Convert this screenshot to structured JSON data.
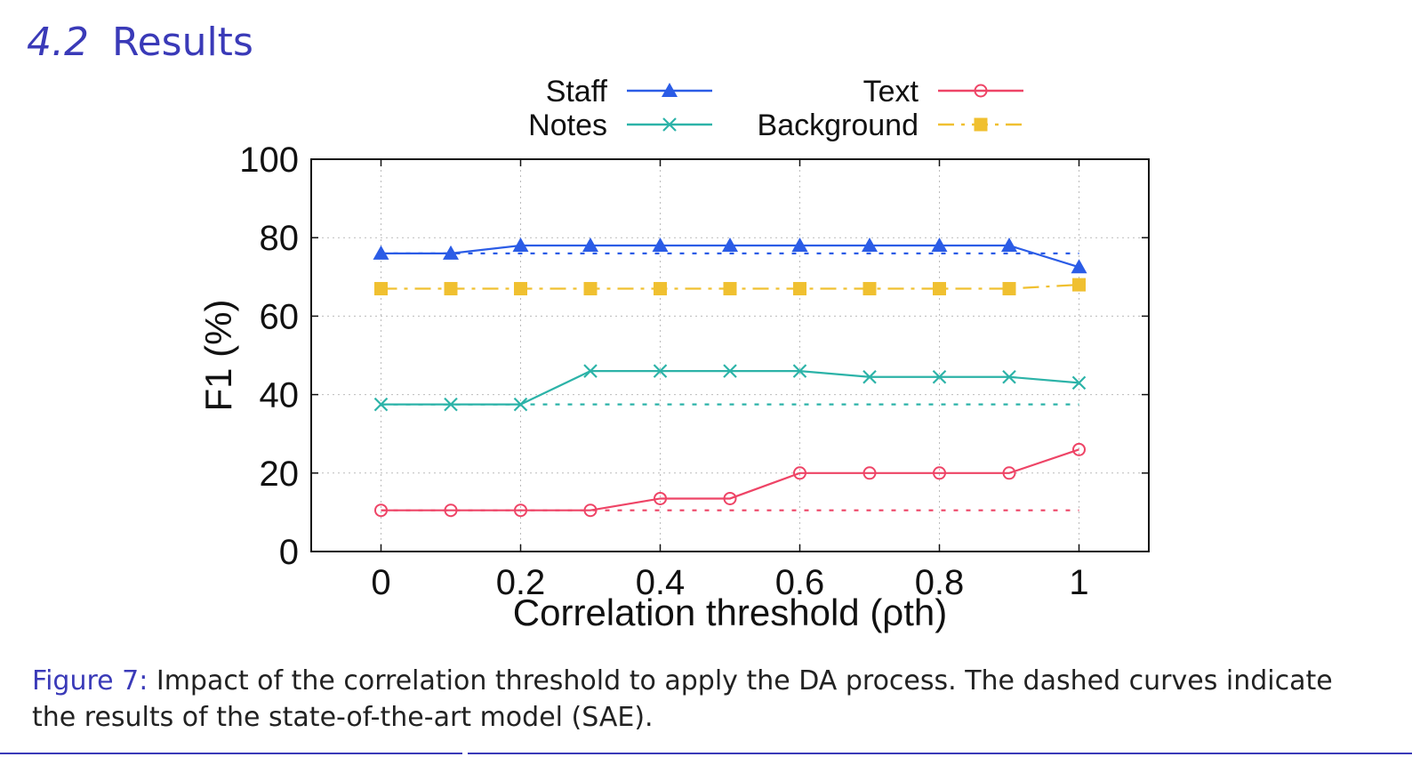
{
  "heading": {
    "number": "4.2",
    "title": "Results"
  },
  "caption": {
    "label": "Figure 7:",
    "text": " Impact of the correlation threshold to apply the DA process. The dashed curves indicate the results of the state-of-the-art model (SAE)."
  },
  "chart_data": {
    "type": "line",
    "xlabel": "Correlation threshold (ρth)",
    "ylabel": "F1 (%)",
    "xlim": [
      -0.1,
      1.1
    ],
    "ylim": [
      0,
      100
    ],
    "xticks": [
      0,
      0.2,
      0.4,
      0.6,
      0.8,
      1
    ],
    "xtick_labels": [
      "0",
      "0.2",
      "0.4",
      "0.6",
      "0.8",
      "1"
    ],
    "yticks": [
      0,
      20,
      40,
      60,
      80,
      100
    ],
    "ytick_labels": [
      "0",
      "20",
      "40",
      "60",
      "80",
      "100"
    ],
    "grid": true,
    "legend_position": "above plot, two columns",
    "x": [
      0,
      0.1,
      0.2,
      0.3,
      0.4,
      0.5,
      0.6,
      0.7,
      0.8,
      0.9,
      1.0
    ],
    "series": [
      {
        "name": "Staff",
        "color": "#2b5ce6",
        "marker": "triangle",
        "line": "solid",
        "values": [
          76,
          76,
          78,
          78,
          78,
          78,
          78,
          78,
          78,
          78,
          72.5
        ],
        "baseline": 76
      },
      {
        "name": "Text",
        "color": "#ee4466",
        "marker": "circle",
        "line": "solid",
        "values": [
          10.5,
          10.5,
          10.5,
          10.5,
          13.5,
          13.5,
          20,
          20,
          20,
          20,
          26
        ],
        "baseline": 10.5
      },
      {
        "name": "Notes",
        "color": "#2cb3a8",
        "marker": "x",
        "line": "solid",
        "values": [
          37.5,
          37.5,
          37.5,
          46,
          46,
          46,
          46,
          44.5,
          44.5,
          44.5,
          43
        ],
        "baseline": 37.5
      },
      {
        "name": "Background",
        "color": "#f0c030",
        "marker": "square",
        "line": "dash-dot",
        "values": [
          67,
          67,
          67,
          67,
          67,
          67,
          67,
          67,
          67,
          67,
          68
        ],
        "baseline": null
      }
    ]
  }
}
